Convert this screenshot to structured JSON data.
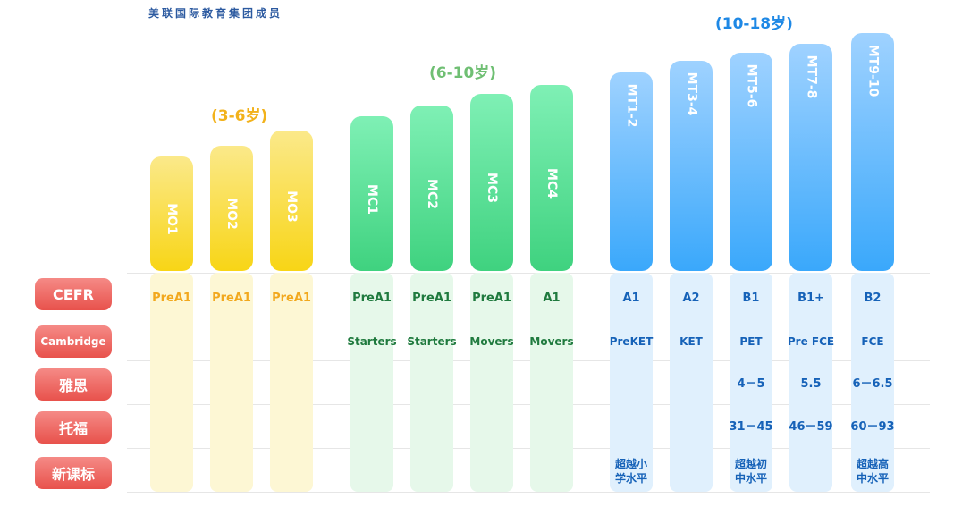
{
  "header": {
    "text": "美联国际教育集团成员"
  },
  "age_groups": [
    {
      "label": "(3-6岁)",
      "color": "#f2b21b"
    },
    {
      "label": "(6-10岁)",
      "color": "#6fbf73"
    },
    {
      "label": "(10-18岁)",
      "color": "#1e88e5"
    }
  ],
  "row_labels": [
    "CEFR",
    "Cambridge",
    "雅思",
    "托福",
    "新课标"
  ],
  "chart_data": {
    "type": "table",
    "columns": [
      {
        "code": "MO1",
        "group": 0,
        "cefr": "PreA1",
        "cambridge": "",
        "ielts": "",
        "toefl": "",
        "curriculum": ""
      },
      {
        "code": "MO2",
        "group": 0,
        "cefr": "PreA1",
        "cambridge": "",
        "ielts": "",
        "toefl": "",
        "curriculum": ""
      },
      {
        "code": "MO3",
        "group": 0,
        "cefr": "PreA1",
        "cambridge": "",
        "ielts": "",
        "toefl": "",
        "curriculum": ""
      },
      {
        "code": "MC1",
        "group": 1,
        "cefr": "PreA1",
        "cambridge": "Starters",
        "ielts": "",
        "toefl": "",
        "curriculum": ""
      },
      {
        "code": "MC2",
        "group": 1,
        "cefr": "PreA1",
        "cambridge": "Starters",
        "ielts": "",
        "toefl": "",
        "curriculum": ""
      },
      {
        "code": "MC3",
        "group": 1,
        "cefr": "PreA1",
        "cambridge": "Movers",
        "ielts": "",
        "toefl": "",
        "curriculum": ""
      },
      {
        "code": "MC4",
        "group": 1,
        "cefr": "A1",
        "cambridge": "Movers",
        "ielts": "",
        "toefl": "",
        "curriculum": ""
      },
      {
        "code": "MT1-2",
        "group": 2,
        "cefr": "A1",
        "cambridge": "PreKET",
        "ielts": "",
        "toefl": "",
        "curriculum": "超越小学水平"
      },
      {
        "code": "MT3-4",
        "group": 2,
        "cefr": "A2",
        "cambridge": "KET",
        "ielts": "",
        "toefl": "",
        "curriculum": ""
      },
      {
        "code": "MT5-6",
        "group": 2,
        "cefr": "B1",
        "cambridge": "PET",
        "ielts": "4－5",
        "toefl": "31－45",
        "curriculum": "超越初中水平"
      },
      {
        "code": "MT7-8",
        "group": 2,
        "cefr": "B1+",
        "cambridge": "Pre FCE",
        "ielts": "5.5",
        "toefl": "46－59",
        "curriculum": ""
      },
      {
        "code": "MT9-10",
        "group": 2,
        "cefr": "B2",
        "cambridge": "FCE",
        "ielts": "6－6.5",
        "toefl": "60－93",
        "curriculum": "超越高中水平"
      }
    ]
  }
}
